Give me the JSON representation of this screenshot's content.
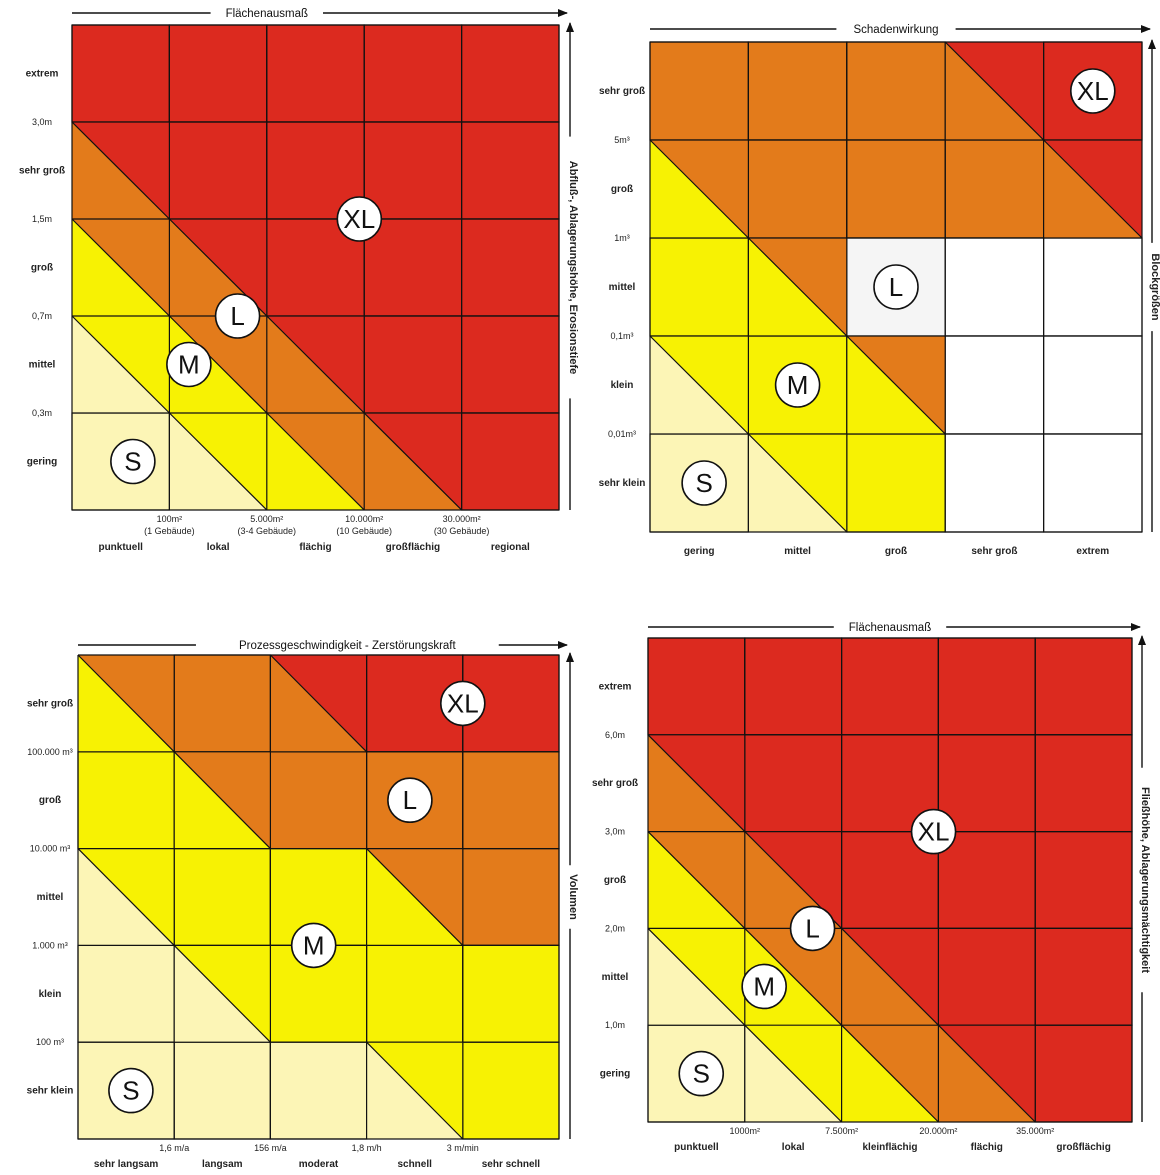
{
  "colors": {
    "S": "#fcf5b6",
    "M": "#f7f203",
    "L": "#e37b1b",
    "XL": "#dc2a1f",
    "none": "#ffffff",
    "grey": "#f5f5f5"
  },
  "panels": [
    {
      "id": "tl",
      "x_title": "Flächenausmaß",
      "y_title": "Abfluß-, Ablagerungshöhe, Erosionstiefe",
      "y_cats": [
        "extrem",
        "sehr groß",
        "groß",
        "mittel",
        "gering"
      ],
      "y_ticks": [
        "3,0m",
        "1,5m",
        "0,7m",
        "0,3m"
      ],
      "x_ticks": [
        {
          "v": "100m²",
          "sub": "(1 Gebäude)"
        },
        {
          "v": "5.000m²",
          "sub": "(3-4 Gebäude)"
        },
        {
          "v": "10.000m²",
          "sub": "(10 Gebäude)"
        },
        {
          "v": "30.000m²",
          "sub": "(30 Gebäude)"
        }
      ],
      "x_cats": [
        "punktuell",
        "lokal",
        "flächig",
        "großflächig",
        "regional"
      ],
      "badges": [
        "S",
        "M",
        "L",
        "XL"
      ],
      "cells": [
        [
          "XL",
          "XL",
          "XL",
          "XL",
          "XL"
        ],
        [
          "L/XL",
          "XL",
          "XL",
          "XL",
          "XL"
        ],
        [
          "M/L",
          "L/XL",
          "XL",
          "XL",
          "XL"
        ],
        [
          "S/M",
          "M/L",
          "L/XL",
          "XL",
          "XL"
        ],
        [
          "S",
          "S/M",
          "M/L",
          "L/XL",
          "XL"
        ]
      ]
    },
    {
      "id": "tr",
      "x_title": "Schadenwirkung",
      "y_title": "Blockgrößen",
      "y_cats": [
        "sehr groß",
        "groß",
        "mittel",
        "klein",
        "sehr klein"
      ],
      "y_ticks": [
        "5m³",
        "1m³",
        "0,1m³",
        "0,01m³"
      ],
      "x_ticks": [],
      "x_cats": [
        "gering",
        "mittel",
        "groß",
        "sehr groß",
        "extrem"
      ],
      "badges": [
        "S",
        "M",
        "L",
        "XL"
      ],
      "cells": [
        [
          "L",
          "L",
          "L",
          "L/XL",
          "XL"
        ],
        [
          "M/L",
          "L",
          "L",
          "L",
          "L/XL"
        ],
        [
          "M",
          "M/L",
          "grey",
          "none",
          "none"
        ],
        [
          "S/M",
          "M",
          "M/L",
          "none",
          "none"
        ],
        [
          "S",
          "S/M",
          "M",
          "none",
          "none"
        ]
      ]
    },
    {
      "id": "bl",
      "x_title": "Prozessgeschwindigkeit - Zerstörungskraft",
      "y_title": "Volumen",
      "y_cats": [
        "sehr groß",
        "groß",
        "mittel",
        "klein",
        "sehr klein"
      ],
      "y_ticks": [
        "100.000 m³",
        "10.000 m³",
        "1.000 m³",
        "100 m³"
      ],
      "x_ticks": [
        {
          "v": "1,6 m/a",
          "sub": ""
        },
        {
          "v": "156 m/a",
          "sub": ""
        },
        {
          "v": "1,8 m/h",
          "sub": ""
        },
        {
          "v": "3 m/min",
          "sub": ""
        }
      ],
      "x_cats": [
        "sehr langsam",
        "langsam",
        "moderat",
        "schnell",
        "sehr schnell"
      ],
      "badges": [
        "S",
        "M",
        "L",
        "XL"
      ],
      "cells": [
        [
          "M/L",
          "L",
          "L/XL",
          "XL",
          "XL"
        ],
        [
          "M",
          "M/L",
          "L",
          "L",
          "L"
        ],
        [
          "S/M",
          "M",
          "M",
          "M/L",
          "L"
        ],
        [
          "S",
          "S/M",
          "M",
          "M",
          "M"
        ],
        [
          "S",
          "S",
          "S",
          "S/M",
          "M"
        ]
      ]
    },
    {
      "id": "br",
      "x_title": "Flächenausmaß",
      "y_title": "Fließhöhe, Ablagerungsmächtigkeit",
      "y_cats": [
        "extrem",
        "sehr groß",
        "groß",
        "mittel",
        "gering"
      ],
      "y_ticks": [
        "6,0m",
        "3,0m",
        "2,0m",
        "1,0m"
      ],
      "x_ticks": [
        {
          "v": "1000m²",
          "sub": ""
        },
        {
          "v": "7.500m²",
          "sub": ""
        },
        {
          "v": "20.000m²",
          "sub": ""
        },
        {
          "v": "35.000m²",
          "sub": ""
        }
      ],
      "x_cats": [
        "punktuell",
        "lokal",
        "kleinflächig",
        "flächig",
        "großflächig"
      ],
      "badges": [
        "S",
        "M",
        "L",
        "XL"
      ],
      "cells": [
        [
          "XL",
          "XL",
          "XL",
          "XL",
          "XL"
        ],
        [
          "L/XL",
          "XL",
          "XL",
          "XL",
          "XL"
        ],
        [
          "M/L",
          "L/XL",
          "XL",
          "XL",
          "XL"
        ],
        [
          "S/M",
          "M/L",
          "L/XL",
          "XL",
          "XL"
        ],
        [
          "S",
          "S/M",
          "M/L",
          "L/XL",
          "XL"
        ]
      ]
    }
  ]
}
